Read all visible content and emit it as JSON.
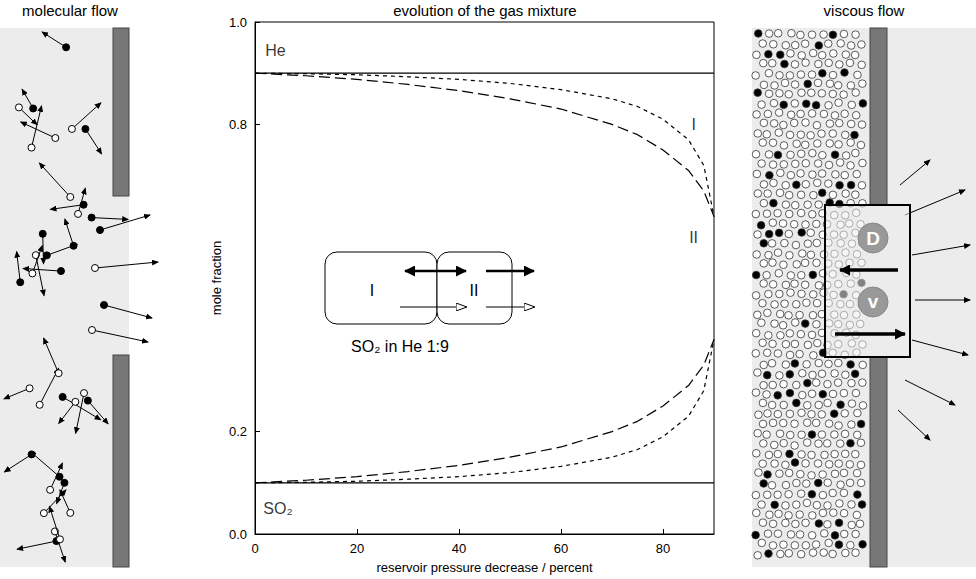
{
  "chart_data": {
    "type": "line",
    "title": "evolution of the gas mixture",
    "x_label": "reservoir pressure decrease / percent",
    "y_label": "mole fraction",
    "xlim": [
      0,
      90
    ],
    "xticks": [
      0,
      20,
      40,
      60,
      80
    ],
    "ylim": [
      0,
      1
    ],
    "yticks": [
      {
        "value": 0,
        "label": "0.0"
      },
      0.2,
      0.8,
      {
        "value": 1,
        "label": "1.0"
      }
    ],
    "grid": false,
    "x": [
      0,
      10,
      20,
      30,
      40,
      50,
      60,
      70,
      75,
      80,
      85,
      88,
      90
    ],
    "series": [
      {
        "color": "#000000",
        "line_style": "solid",
        "values": [
          0.9,
          0.9,
          0.9,
          0.9,
          0.9,
          0.9,
          0.9,
          0.9,
          0.9,
          0.9,
          0.9,
          0.9,
          0.9
        ]
      },
      {
        "color": "#000000",
        "line_style": "dashed",
        "values": [
          0.9,
          0.899,
          0.897,
          0.893,
          0.888,
          0.88,
          0.868,
          0.85,
          0.835,
          0.81,
          0.77,
          0.72,
          0.62
        ]
      },
      {
        "color": "#000000",
        "line_style": "long_dashed",
        "values": [
          0.9,
          0.895,
          0.888,
          0.878,
          0.866,
          0.85,
          0.83,
          0.8,
          0.78,
          0.75,
          0.71,
          0.67,
          0.62
        ]
      },
      {
        "color": "#000000",
        "line_style": "solid",
        "values": [
          0.1,
          0.1,
          0.1,
          0.1,
          0.1,
          0.1,
          0.1,
          0.1,
          0.1,
          0.1,
          0.1,
          0.1,
          0.1
        ]
      },
      {
        "color": "#000000",
        "line_style": "dashed",
        "values": [
          0.1,
          0.101,
          0.103,
          0.107,
          0.112,
          0.12,
          0.132,
          0.15,
          0.165,
          0.19,
          0.23,
          0.28,
          0.38
        ]
      },
      {
        "color": "#000000",
        "line_style": "long_dashed",
        "values": [
          0.1,
          0.105,
          0.112,
          0.122,
          0.134,
          0.15,
          0.17,
          0.2,
          0.22,
          0.25,
          0.29,
          0.33,
          0.38
        ]
      }
    ],
    "annotations": [
      {
        "text": "He",
        "x": 4,
        "y": 0.945
      },
      {
        "text": "SO₂",
        "x": 4.5,
        "y": 0.05
      },
      {
        "text": "I",
        "x": 86,
        "y": 0.8
      },
      {
        "text": "II",
        "x": 86,
        "y": 0.58
      }
    ],
    "inset": {
      "labels": [
        "I",
        "II"
      ],
      "caption": "SO₂ in He 1:9"
    }
  },
  "left_panel": {
    "title": "molecular flow"
  },
  "right_panel": {
    "title": "viscous flow",
    "labels": [
      "D",
      "v"
    ]
  }
}
